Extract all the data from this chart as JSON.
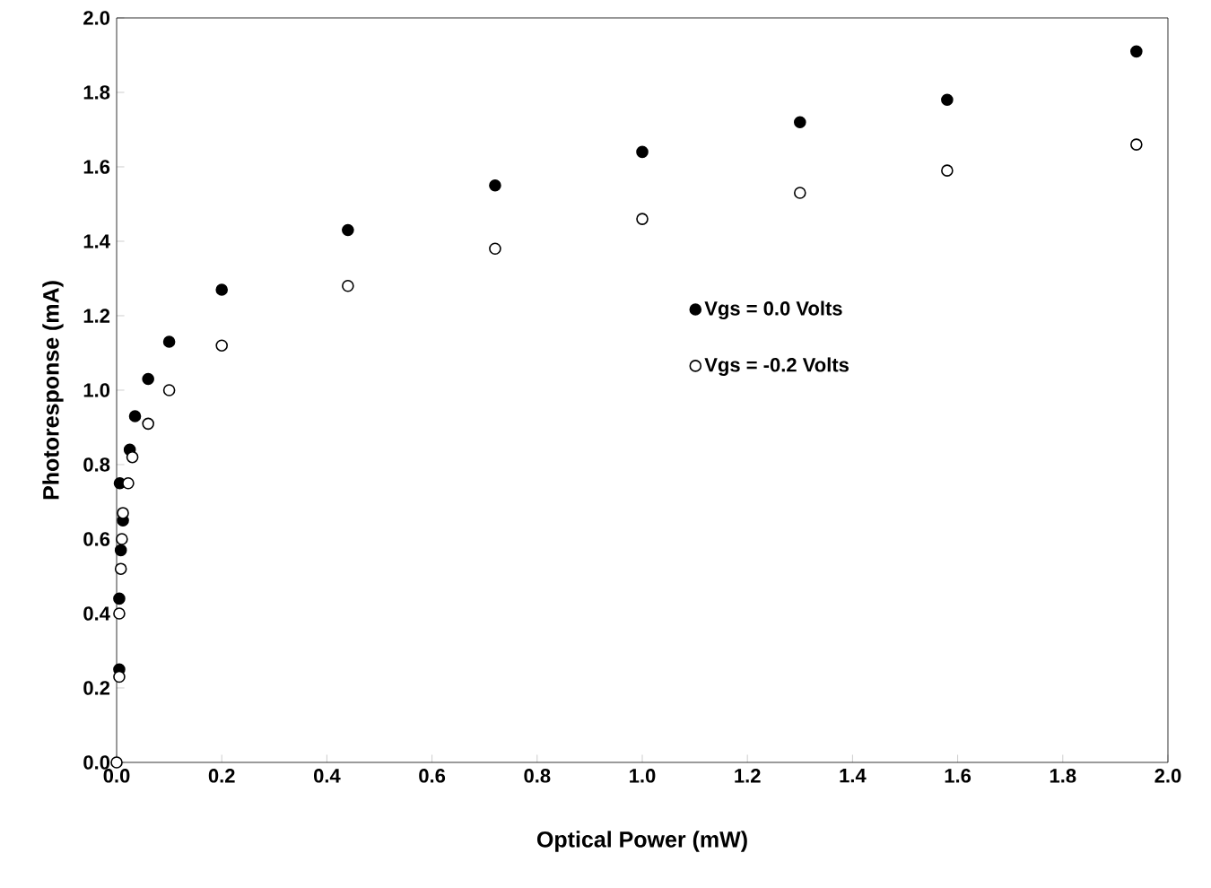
{
  "chart_data": {
    "type": "scatter",
    "xlabel": "Optical Power (mW)",
    "ylabel": "Photoresponse (mA)",
    "xlim": [
      0,
      2.0
    ],
    "ylim": [
      0,
      2.0
    ],
    "xticks": [
      {
        "value": 0,
        "label": "0.0"
      },
      0.2,
      0.4,
      0.6,
      0.8,
      {
        "value": 1,
        "label": "1.0"
      },
      1.2,
      1.4,
      1.6,
      1.8,
      {
        "value": 2,
        "label": "2.0"
      }
    ],
    "yticks": [
      {
        "value": 0,
        "label": "0.0"
      },
      0.2,
      0.4,
      0.6,
      0.8,
      {
        "value": 1,
        "label": "1.0"
      },
      1.2,
      1.4,
      1.6,
      1.8,
      {
        "value": 2,
        "label": "2.0"
      }
    ],
    "marker": "circle",
    "legend": "center right",
    "grid": false,
    "series": [
      {
        "name": "Vgs = 0.0 Volts",
        "color": "#000000",
        "x": [
          0.005,
          0.005,
          0.008,
          0.012,
          0.006,
          0.025,
          0.035,
          0.06,
          0.1,
          0.2,
          0.44,
          0.72,
          1.0,
          1.3,
          1.58,
          1.94
        ],
        "values": [
          0.25,
          0.44,
          0.57,
          0.65,
          0.75,
          0.84,
          0.93,
          1.03,
          1.13,
          1.27,
          1.43,
          1.55,
          1.64,
          1.72,
          1.78,
          1.91
        ]
      },
      {
        "name": "Vgs = -0.2 Volts",
        "color": "#ffffff",
        "x": [
          0,
          0.005,
          0.005,
          0.008,
          0.01,
          0.012,
          0.022,
          0.03,
          0.06,
          0.1,
          0.2,
          0.44,
          0.72,
          1.0,
          1.3,
          1.58,
          1.94
        ],
        "values": [
          0,
          0.23,
          0.4,
          0.52,
          0.6,
          0.67,
          0.75,
          0.82,
          0.91,
          1.0,
          1.12,
          1.28,
          1.38,
          1.46,
          1.53,
          1.59,
          1.66
        ]
      }
    ]
  }
}
